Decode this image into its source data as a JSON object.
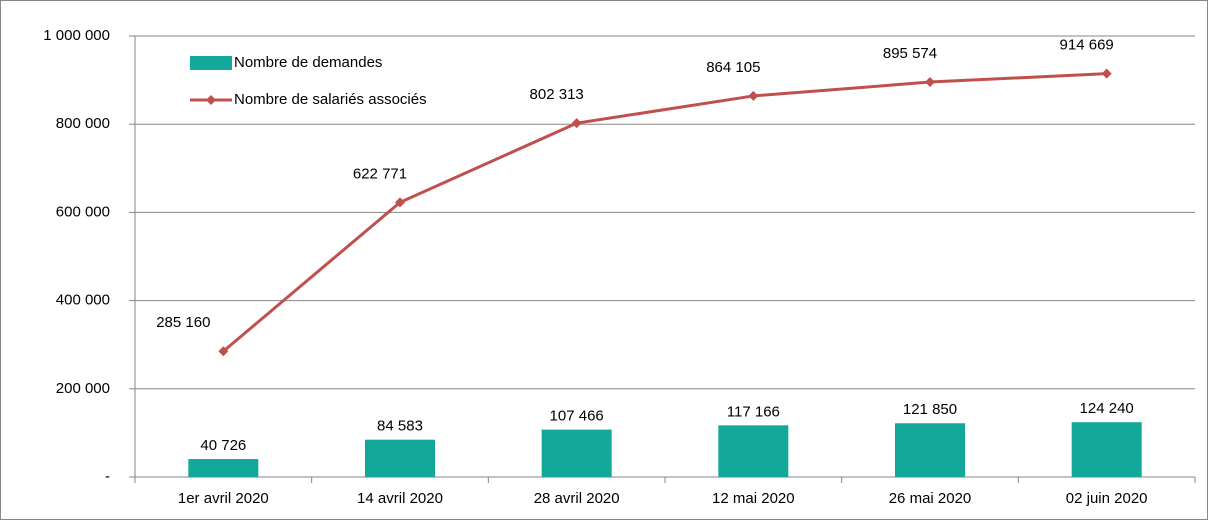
{
  "chart_data": {
    "type": "combo",
    "categories": [
      "1er avril 2020",
      "14 avril 2020",
      "28 avril 2020",
      "12 mai 2020",
      "26 mai 2020",
      "02 juin 2020"
    ],
    "series": [
      {
        "name": "Nombre de demandes",
        "type": "bar",
        "color": "#14a89b",
        "values": [
          40726,
          84583,
          107466,
          117166,
          121850,
          124240
        ],
        "value_labels": [
          "40 726",
          "84 583",
          "107 466",
          "117 166",
          "121 850",
          "124 240"
        ]
      },
      {
        "name": "Nombre de salariés associés",
        "type": "line",
        "color": "#c0504d",
        "values": [
          285160,
          622771,
          802313,
          864105,
          895574,
          914669
        ],
        "value_labels": [
          "285 160",
          "622 771",
          "802 313",
          "864 105",
          "895 574",
          "914 669"
        ]
      }
    ],
    "ylim": [
      0,
      1000000
    ],
    "yticks": [
      {
        "value": 0,
        "label": "-"
      },
      {
        "value": 200000,
        "label": "200 000"
      },
      {
        "value": 400000,
        "label": "400 000"
      },
      {
        "value": 600000,
        "label": "600 000"
      },
      {
        "value": 800000,
        "label": "800 000"
      },
      {
        "value": 1000000,
        "label": "1 000 000"
      }
    ],
    "grid": true,
    "legend": "top-left"
  }
}
